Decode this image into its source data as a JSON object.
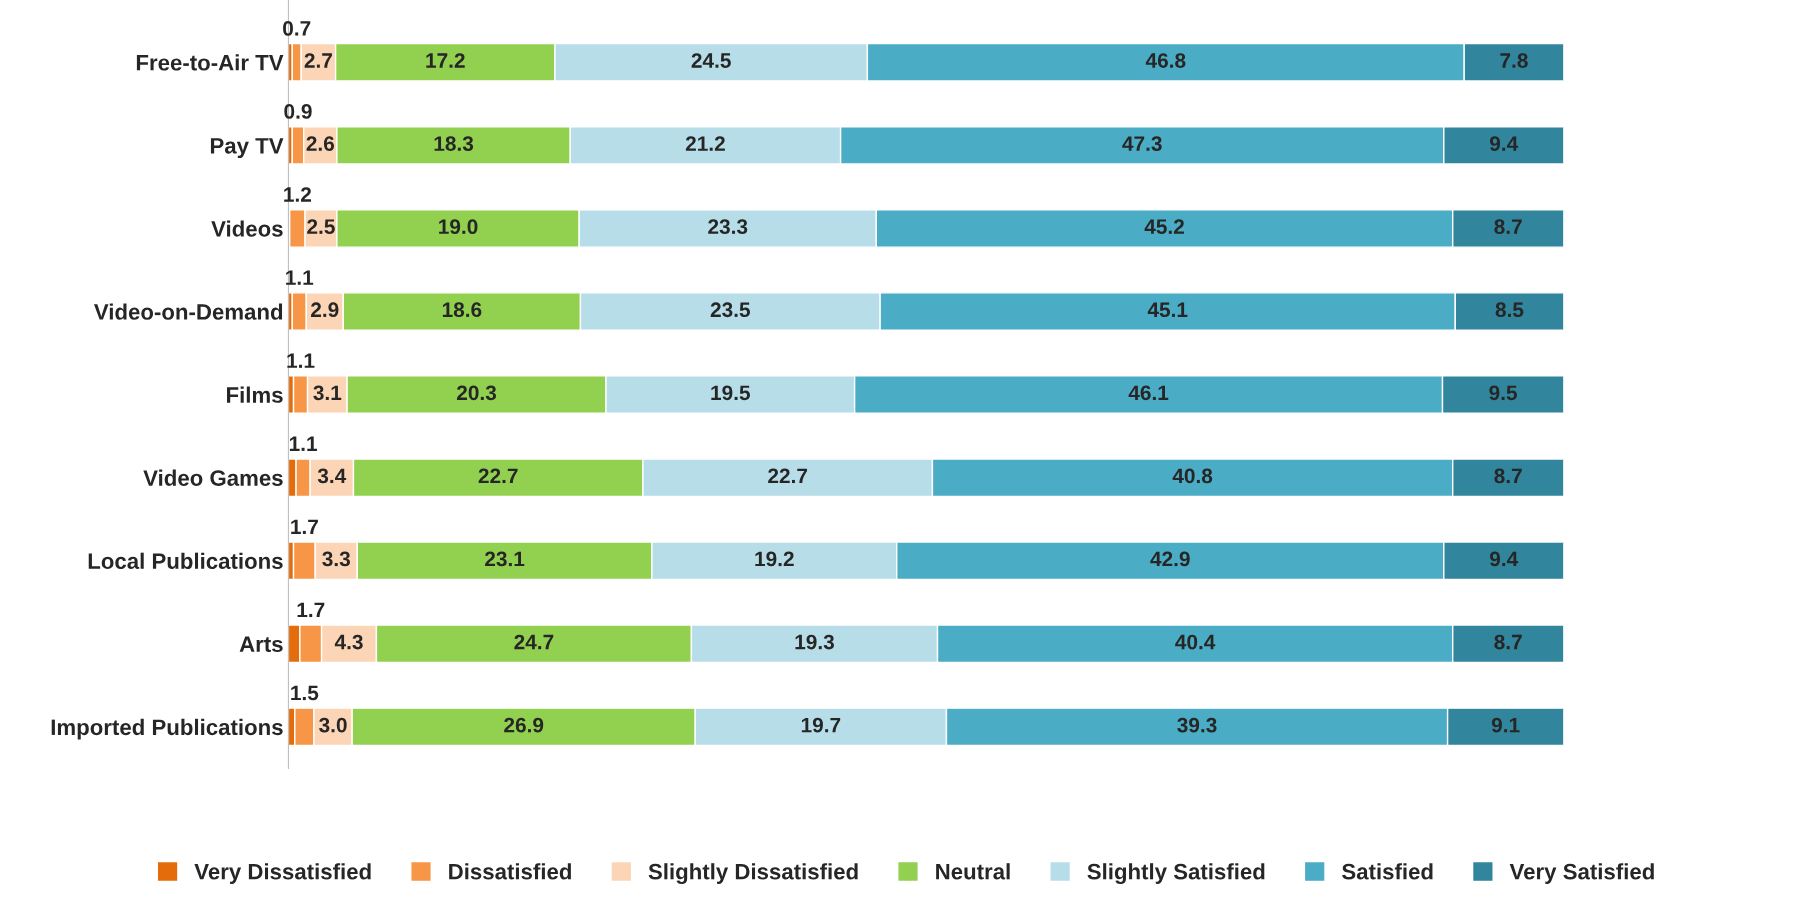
{
  "chart_data": {
    "type": "bar",
    "orientation": "horizontal",
    "stacked": true,
    "tick_labels": "y",
    "xlim": [
      0,
      100
    ],
    "legend": "bottom",
    "grid": false,
    "categories": [
      "Free-to-Air TV",
      "Pay TV",
      "Videos",
      "Video-on-Demand",
      "Films",
      "Video Games",
      "Local Publications",
      "Arts",
      "Imported Publications"
    ],
    "series": [
      {
        "name": "Very Dissatisfied",
        "color": "#e46c0a",
        "values": [
          0.3,
          0.3,
          0.1,
          0.3,
          0.4,
          0.6,
          0.4,
          0.9,
          0.5
        ]
      },
      {
        "name": "Dissatisfied",
        "color": "#f79646",
        "values": [
          0.7,
          0.9,
          1.2,
          1.1,
          1.1,
          1.1,
          1.7,
          1.7,
          1.5
        ],
        "value_labels": [
          "0.7",
          "0.9",
          "1.2",
          "1.1",
          "1.1",
          "1.1",
          "1.7",
          "1.7",
          "1.5"
        ]
      },
      {
        "name": "Slightly Dissatisfied",
        "color": "#fbd5b5",
        "values": [
          2.7,
          2.6,
          2.5,
          2.9,
          3.1,
          3.4,
          3.3,
          4.3,
          3.0
        ],
        "value_labels": [
          "2.7",
          "2.6",
          "2.5",
          "2.9",
          "3.1",
          "3.4",
          "3.3",
          "4.3",
          "3.0"
        ]
      },
      {
        "name": "Neutral",
        "color": "#92d050",
        "values": [
          17.2,
          18.3,
          19.0,
          18.6,
          20.3,
          22.7,
          23.1,
          24.7,
          26.9
        ],
        "value_labels": [
          "17.2",
          "18.3",
          "19.0",
          "18.6",
          "20.3",
          "22.7",
          "23.1",
          "24.7",
          "26.9"
        ]
      },
      {
        "name": "Slightly Satisfied",
        "color": "#b7dee8",
        "values": [
          24.5,
          21.2,
          23.3,
          23.5,
          19.5,
          22.7,
          19.2,
          19.3,
          19.7
        ],
        "value_labels": [
          "24.5",
          "21.2",
          "23.3",
          "23.5",
          "19.5",
          "22.7",
          "19.2",
          "19.3",
          "19.7"
        ]
      },
      {
        "name": "Satisfied",
        "color": "#4bacc6",
        "values": [
          46.8,
          47.3,
          45.2,
          45.1,
          46.1,
          40.8,
          42.9,
          40.4,
          39.3
        ],
        "value_labels": [
          "46.8",
          "47.3",
          "45.2",
          "45.1",
          "46.1",
          "40.8",
          "42.9",
          "40.4",
          "39.3"
        ]
      },
      {
        "name": "Very Satisfied",
        "color": "#31859c",
        "values": [
          7.8,
          9.4,
          8.7,
          8.5,
          9.5,
          8.7,
          9.4,
          8.7,
          9.1
        ],
        "value_labels": [
          "7.8",
          "9.4",
          "8.7",
          "8.5",
          "9.5",
          "8.7",
          "9.4",
          "8.7",
          "9.1"
        ]
      }
    ]
  }
}
